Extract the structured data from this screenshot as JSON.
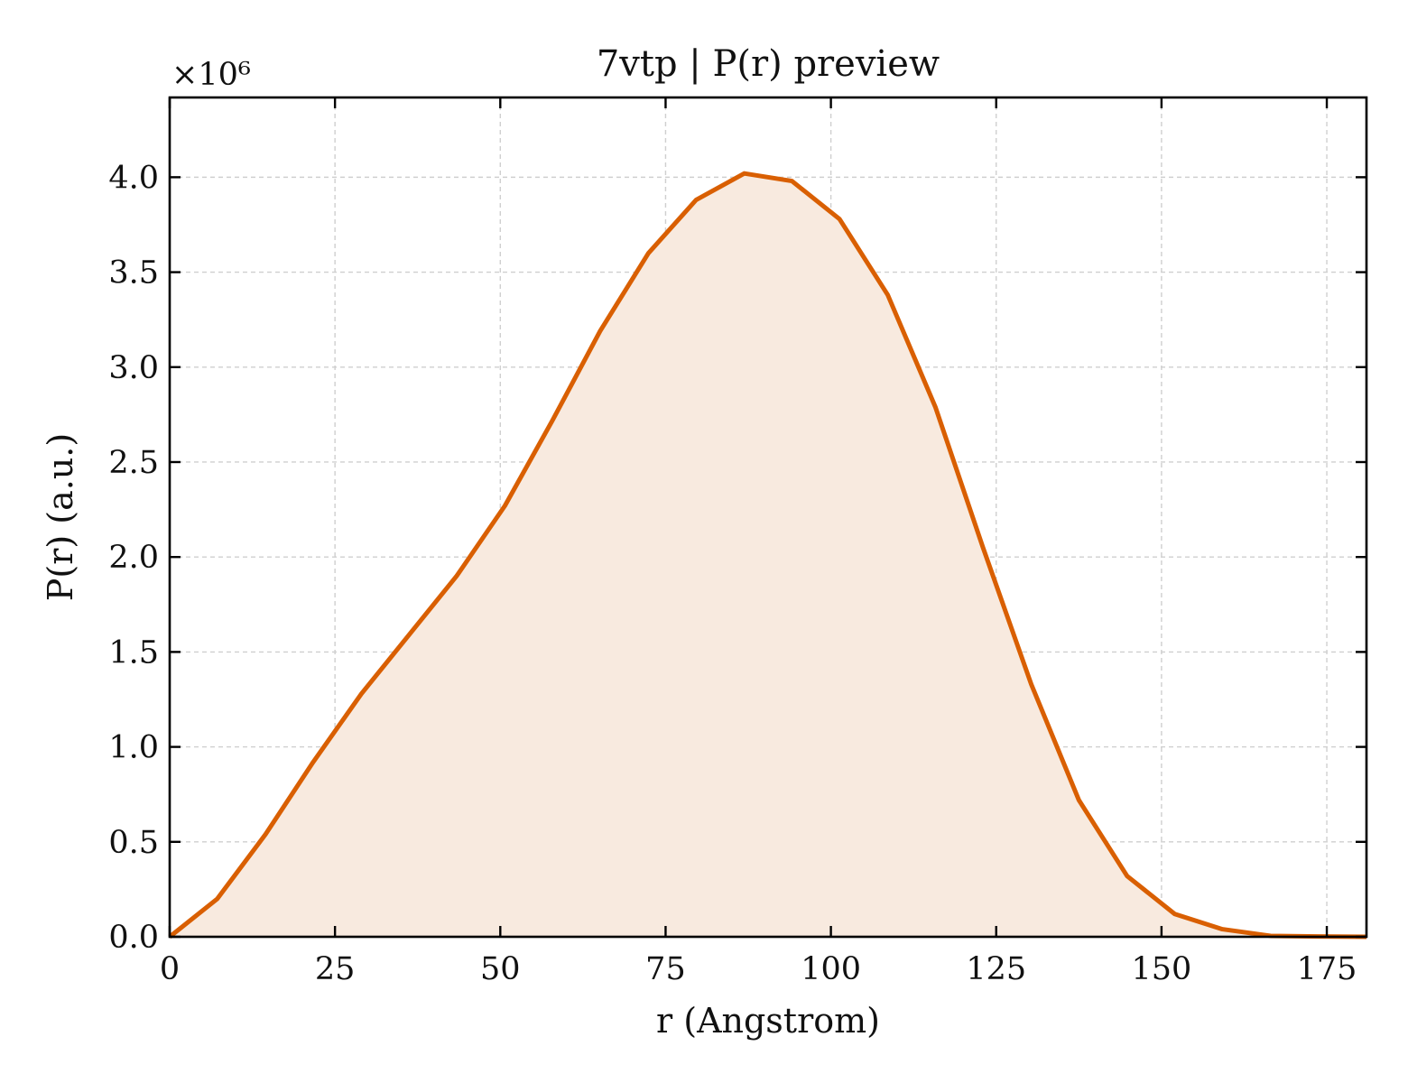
{
  "chart_data": {
    "type": "area",
    "title": "7vtp | P(r) preview",
    "xlabel": "r (Angstrom)",
    "ylabel": "P(r) (a.u.)",
    "y_multiplier_label": "×10⁶",
    "xlim": [
      0,
      181
    ],
    "ylim": [
      0,
      4.42
    ],
    "xticks": [
      0,
      25,
      50,
      75,
      100,
      125,
      150,
      175
    ],
    "yticks": [
      0.0,
      0.5,
      1.0,
      1.5,
      2.0,
      2.5,
      3.0,
      3.5,
      4.0
    ],
    "x_tick_labels": [
      "0",
      "25",
      "50",
      "75",
      "100",
      "125",
      "150",
      "175"
    ],
    "y_tick_labels": [
      "0.0",
      "0.5",
      "1.0",
      "1.5",
      "2.0",
      "2.5",
      "3.0",
      "3.5",
      "4.0"
    ],
    "grid": true,
    "legend": "none",
    "colors": {
      "line": "#d95f02",
      "fill": "#f8eadf"
    },
    "series": [
      {
        "x": [
          0,
          7.2,
          14.5,
          21.7,
          29.0,
          36.2,
          43.4,
          50.7,
          57.9,
          65.1,
          72.4,
          79.6,
          86.9,
          94.1,
          101.3,
          108.6,
          115.8,
          123.0,
          130.3,
          137.5,
          144.8,
          152.0,
          159.2,
          166.5,
          173.7,
          181.0
        ],
        "values": [
          0.0,
          0.2,
          0.54,
          0.92,
          1.28,
          1.59,
          1.9,
          2.27,
          2.72,
          3.19,
          3.6,
          3.88,
          4.02,
          3.98,
          3.78,
          3.38,
          2.79,
          2.05,
          1.33,
          0.72,
          0.32,
          0.12,
          0.04,
          0.005,
          0.002,
          0.0
        ]
      }
    ]
  }
}
